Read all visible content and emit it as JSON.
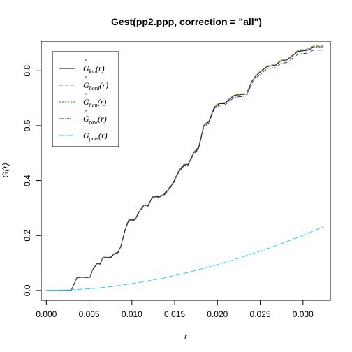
{
  "chart_data": {
    "type": "line",
    "title": "Gest(pp2.ppp, correction = \"all\")",
    "xlabel": "r",
    "ylabel": "G(r)",
    "xlim": [
      -0.0006,
      0.0332
    ],
    "ylim": [
      -0.0358,
      0.9075
    ],
    "xticks": [
      0.0,
      0.005,
      0.01,
      0.015,
      0.02,
      0.025,
      0.03
    ],
    "xtick_labels": [
      "0.000",
      "0.005",
      "0.010",
      "0.015",
      "0.020",
      "0.025",
      "0.030"
    ],
    "yticks": [
      0.0,
      0.2,
      0.4,
      0.6,
      0.8
    ],
    "ytick_labels": [
      "0.0",
      "0.2",
      "0.4",
      "0.6",
      "0.8"
    ],
    "grid": false,
    "legend_position": "top-left",
    "series": [
      {
        "name": "km",
        "legend_main": "G",
        "legend_sub": "km",
        "legend_arg": "(r)",
        "hat": true,
        "color": "#000000",
        "dash": "",
        "points": [
          [
            0.0,
            0.0
          ],
          [
            0.0029,
            0.0
          ],
          [
            0.0036,
            0.048
          ],
          [
            0.0044,
            0.048
          ],
          [
            0.0051,
            0.048
          ],
          [
            0.0054,
            0.075
          ],
          [
            0.0059,
            0.098
          ],
          [
            0.0063,
            0.098
          ],
          [
            0.0066,
            0.12
          ],
          [
            0.0075,
            0.12
          ],
          [
            0.0078,
            0.13
          ],
          [
            0.0084,
            0.14
          ],
          [
            0.0087,
            0.16
          ],
          [
            0.0092,
            0.22
          ],
          [
            0.0096,
            0.255
          ],
          [
            0.0104,
            0.26
          ],
          [
            0.0108,
            0.285
          ],
          [
            0.0114,
            0.31
          ],
          [
            0.0119,
            0.31
          ],
          [
            0.0124,
            0.34
          ],
          [
            0.0136,
            0.345
          ],
          [
            0.0142,
            0.365
          ],
          [
            0.0148,
            0.39
          ],
          [
            0.0154,
            0.43
          ],
          [
            0.016,
            0.455
          ],
          [
            0.0166,
            0.46
          ],
          [
            0.0172,
            0.5
          ],
          [
            0.0178,
            0.52
          ],
          [
            0.0184,
            0.6
          ],
          [
            0.019,
            0.615
          ],
          [
            0.0196,
            0.665
          ],
          [
            0.0202,
            0.68
          ],
          [
            0.0208,
            0.68
          ],
          [
            0.0214,
            0.695
          ],
          [
            0.022,
            0.71
          ],
          [
            0.0234,
            0.715
          ],
          [
            0.024,
            0.76
          ],
          [
            0.0246,
            0.785
          ],
          [
            0.0252,
            0.8
          ],
          [
            0.0258,
            0.815
          ],
          [
            0.0268,
            0.82
          ],
          [
            0.0274,
            0.835
          ],
          [
            0.0282,
            0.84
          ],
          [
            0.0288,
            0.855
          ],
          [
            0.0294,
            0.87
          ],
          [
            0.0306,
            0.875
          ],
          [
            0.0312,
            0.885
          ],
          [
            0.0324,
            0.885
          ]
        ]
      },
      {
        "name": "bord",
        "legend_main": "G",
        "legend_sub": "bord",
        "legend_arg": "(r)",
        "hat": true,
        "color": "#DF536B",
        "dash": "5,3",
        "points": [
          [
            0.0,
            0.0
          ],
          [
            0.0029,
            0.0
          ],
          [
            0.0036,
            0.049
          ],
          [
            0.0044,
            0.049
          ],
          [
            0.0051,
            0.049
          ],
          [
            0.0054,
            0.076
          ],
          [
            0.0059,
            0.1
          ],
          [
            0.0063,
            0.1
          ],
          [
            0.0066,
            0.122
          ],
          [
            0.0075,
            0.122
          ],
          [
            0.0078,
            0.132
          ],
          [
            0.0084,
            0.142
          ],
          [
            0.0087,
            0.162
          ],
          [
            0.0092,
            0.222
          ],
          [
            0.0096,
            0.257
          ],
          [
            0.0104,
            0.262
          ],
          [
            0.0108,
            0.287
          ],
          [
            0.0114,
            0.312
          ],
          [
            0.0119,
            0.312
          ],
          [
            0.0124,
            0.342
          ],
          [
            0.0136,
            0.348
          ],
          [
            0.0142,
            0.368
          ],
          [
            0.0148,
            0.393
          ],
          [
            0.0154,
            0.433
          ],
          [
            0.016,
            0.458
          ],
          [
            0.0166,
            0.463
          ],
          [
            0.0172,
            0.503
          ],
          [
            0.0178,
            0.523
          ],
          [
            0.0184,
            0.603
          ],
          [
            0.019,
            0.618
          ],
          [
            0.0196,
            0.668
          ],
          [
            0.0202,
            0.683
          ],
          [
            0.0208,
            0.683
          ],
          [
            0.0214,
            0.698
          ],
          [
            0.022,
            0.713
          ],
          [
            0.0234,
            0.718
          ],
          [
            0.024,
            0.763
          ],
          [
            0.0246,
            0.788
          ],
          [
            0.0252,
            0.803
          ],
          [
            0.0258,
            0.818
          ],
          [
            0.0268,
            0.823
          ],
          [
            0.0274,
            0.838
          ],
          [
            0.0282,
            0.843
          ],
          [
            0.0288,
            0.858
          ],
          [
            0.0294,
            0.875
          ],
          [
            0.0306,
            0.88
          ],
          [
            0.0312,
            0.89
          ],
          [
            0.0324,
            0.89
          ]
        ]
      },
      {
        "name": "han",
        "legend_main": "G",
        "legend_sub": "han",
        "legend_arg": "(r)",
        "hat": true,
        "color": "#00A000",
        "dash": "2,2",
        "points": [
          [
            0.0,
            0.0
          ],
          [
            0.0029,
            0.0
          ],
          [
            0.0036,
            0.048
          ],
          [
            0.0044,
            0.048
          ],
          [
            0.0051,
            0.048
          ],
          [
            0.0054,
            0.075
          ],
          [
            0.0059,
            0.099
          ],
          [
            0.0063,
            0.099
          ],
          [
            0.0066,
            0.121
          ],
          [
            0.0075,
            0.121
          ],
          [
            0.0078,
            0.131
          ],
          [
            0.0084,
            0.141
          ],
          [
            0.0087,
            0.161
          ],
          [
            0.0092,
            0.221
          ],
          [
            0.0096,
            0.256
          ],
          [
            0.0104,
            0.261
          ],
          [
            0.0108,
            0.286
          ],
          [
            0.0114,
            0.311
          ],
          [
            0.0119,
            0.311
          ],
          [
            0.0124,
            0.341
          ],
          [
            0.0136,
            0.346
          ],
          [
            0.0142,
            0.366
          ],
          [
            0.0148,
            0.391
          ],
          [
            0.0154,
            0.431
          ],
          [
            0.016,
            0.456
          ],
          [
            0.0166,
            0.461
          ],
          [
            0.0172,
            0.501
          ],
          [
            0.0178,
            0.521
          ],
          [
            0.0184,
            0.601
          ],
          [
            0.019,
            0.616
          ],
          [
            0.0196,
            0.666
          ],
          [
            0.0202,
            0.681
          ],
          [
            0.0208,
            0.681
          ],
          [
            0.0214,
            0.696
          ],
          [
            0.022,
            0.711
          ],
          [
            0.0234,
            0.716
          ],
          [
            0.024,
            0.761
          ],
          [
            0.0246,
            0.786
          ],
          [
            0.0252,
            0.801
          ],
          [
            0.0258,
            0.816
          ],
          [
            0.0268,
            0.821
          ],
          [
            0.0274,
            0.836
          ],
          [
            0.0282,
            0.841
          ],
          [
            0.0288,
            0.856
          ],
          [
            0.0294,
            0.872
          ],
          [
            0.0306,
            0.877
          ],
          [
            0.0312,
            0.888
          ],
          [
            0.0324,
            0.888
          ]
        ]
      },
      {
        "name": "raw",
        "legend_main": "G",
        "legend_sub": "raw",
        "legend_arg": "(r)",
        "hat": true,
        "color": "#2222AA",
        "dash": "6,2,1,2",
        "points": [
          [
            0.0,
            0.0
          ],
          [
            0.0029,
            0.0
          ],
          [
            0.0036,
            0.047
          ],
          [
            0.0044,
            0.047
          ],
          [
            0.0051,
            0.047
          ],
          [
            0.0054,
            0.073
          ],
          [
            0.0059,
            0.096
          ],
          [
            0.0063,
            0.096
          ],
          [
            0.0066,
            0.118
          ],
          [
            0.0075,
            0.118
          ],
          [
            0.0078,
            0.128
          ],
          [
            0.0084,
            0.138
          ],
          [
            0.0087,
            0.158
          ],
          [
            0.0092,
            0.218
          ],
          [
            0.0096,
            0.252
          ],
          [
            0.0104,
            0.257
          ],
          [
            0.0108,
            0.282
          ],
          [
            0.0114,
            0.307
          ],
          [
            0.0119,
            0.307
          ],
          [
            0.0124,
            0.337
          ],
          [
            0.0136,
            0.342
          ],
          [
            0.0142,
            0.362
          ],
          [
            0.0148,
            0.386
          ],
          [
            0.0154,
            0.426
          ],
          [
            0.016,
            0.451
          ],
          [
            0.0166,
            0.456
          ],
          [
            0.0172,
            0.496
          ],
          [
            0.0178,
            0.515
          ],
          [
            0.0184,
            0.595
          ],
          [
            0.019,
            0.61
          ],
          [
            0.0196,
            0.66
          ],
          [
            0.0202,
            0.674
          ],
          [
            0.0208,
            0.674
          ],
          [
            0.0214,
            0.689
          ],
          [
            0.022,
            0.703
          ],
          [
            0.0234,
            0.708
          ],
          [
            0.024,
            0.753
          ],
          [
            0.0246,
            0.777
          ],
          [
            0.0252,
            0.792
          ],
          [
            0.0258,
            0.807
          ],
          [
            0.0268,
            0.812
          ],
          [
            0.0274,
            0.826
          ],
          [
            0.0282,
            0.831
          ],
          [
            0.0288,
            0.846
          ],
          [
            0.0294,
            0.86
          ],
          [
            0.0306,
            0.865
          ],
          [
            0.0312,
            0.875
          ],
          [
            0.0324,
            0.875
          ]
        ]
      },
      {
        "name": "pois",
        "legend_main": "G",
        "legend_sub": "pois",
        "legend_arg": "(r)",
        "hat": false,
        "color": "#22D3E6",
        "dash": "8,3",
        "points": [
          [
            0.0,
            0.0
          ],
          [
            0.0027,
            0.002
          ],
          [
            0.0054,
            0.007
          ],
          [
            0.0081,
            0.016
          ],
          [
            0.0108,
            0.029
          ],
          [
            0.0135,
            0.044
          ],
          [
            0.0162,
            0.063
          ],
          [
            0.0189,
            0.085
          ],
          [
            0.0216,
            0.109
          ],
          [
            0.0243,
            0.136
          ],
          [
            0.027,
            0.165
          ],
          [
            0.0297,
            0.197
          ],
          [
            0.0324,
            0.232
          ]
        ]
      }
    ]
  }
}
